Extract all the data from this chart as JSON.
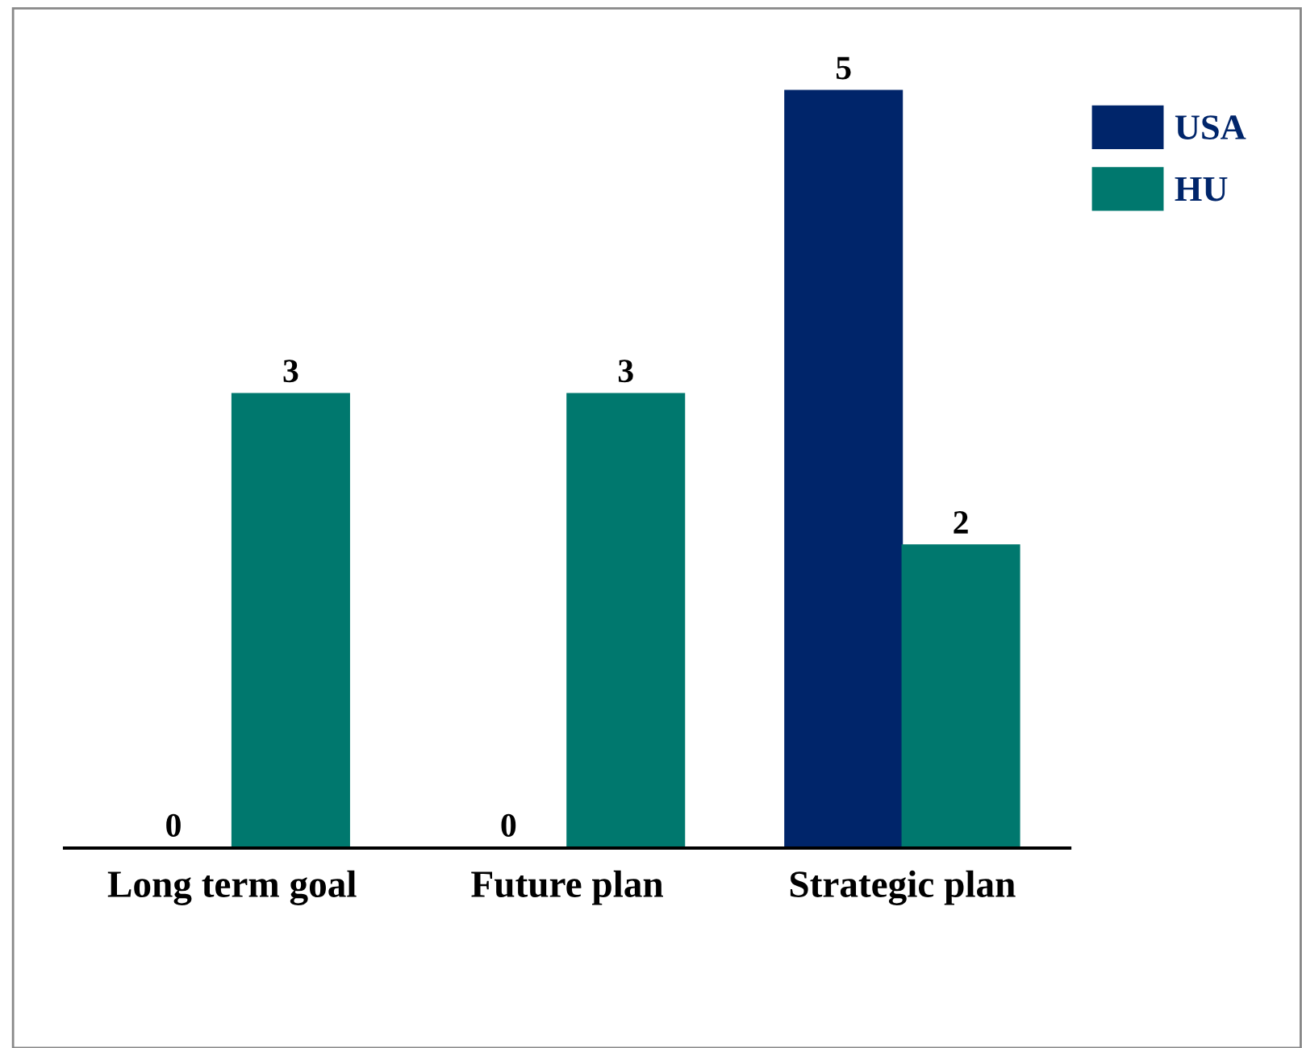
{
  "chart_data": {
    "type": "bar",
    "categories": [
      "Long term goal",
      "Future plan",
      "Strategic plan"
    ],
    "series": [
      {
        "name": "USA",
        "color": "#00256a",
        "values": [
          0,
          0,
          5
        ]
      },
      {
        "name": "HU",
        "color": "#00786e",
        "values": [
          3,
          3,
          2
        ]
      }
    ],
    "data_labels": true,
    "legend": "top right",
    "grid": false
  }
}
